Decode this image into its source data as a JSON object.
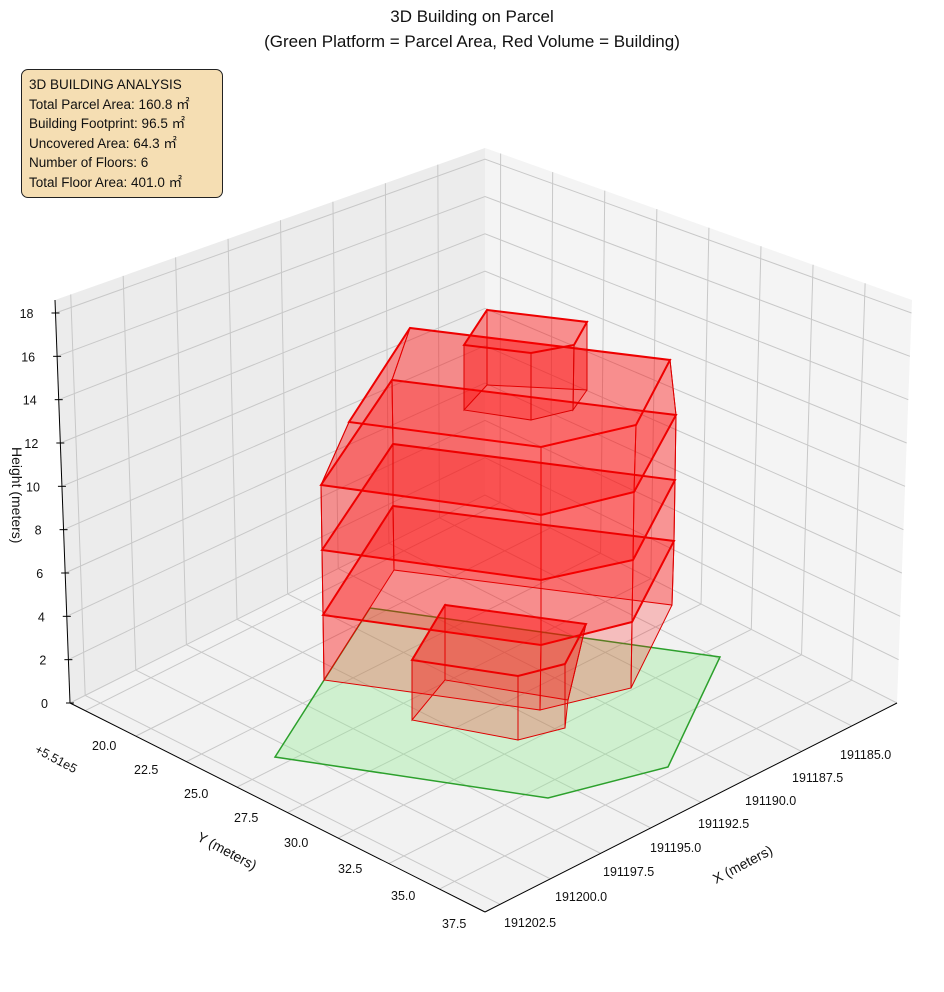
{
  "chart_data": {
    "type": "3d-polygon",
    "title": "3D Building on Parcel",
    "subtitle": "(Green Platform = Parcel Area, Red Volume = Building)",
    "xlabel": "X (meters)",
    "ylabel": "Y (meters)",
    "zlabel": "Height (meters)",
    "y_offset_label": "+5.51e5",
    "x_ticks": [
      "191185.0",
      "191187.5",
      "191190.0",
      "191192.5",
      "191195.0",
      "191197.5",
      "191200.0",
      "191202.5"
    ],
    "y_ticks": [
      "20.0",
      "22.5",
      "25.0",
      "27.5",
      "30.0",
      "32.5",
      "35.0",
      "37.5"
    ],
    "z_ticks": [
      "0",
      "2",
      "4",
      "6",
      "8",
      "10",
      "12",
      "14",
      "16",
      "18"
    ],
    "zlim": [
      0,
      18
    ],
    "grid": true,
    "series": [
      {
        "name": "Parcel Area",
        "color": "#2ca02c",
        "fill": "#90ee90"
      },
      {
        "name": "Building",
        "color": "#ff0000",
        "floors": 6
      }
    ],
    "annotation": {
      "heading": "3D BUILDING ANALYSIS",
      "lines": [
        "Total Parcel Area: 160.8 ㎡",
        "Building Footprint: 96.5 ㎡",
        "Uncovered Area: 64.3 ㎡",
        "Number of Floors: 6",
        "Total Floor Area: 401.0 ㎡"
      ]
    }
  }
}
